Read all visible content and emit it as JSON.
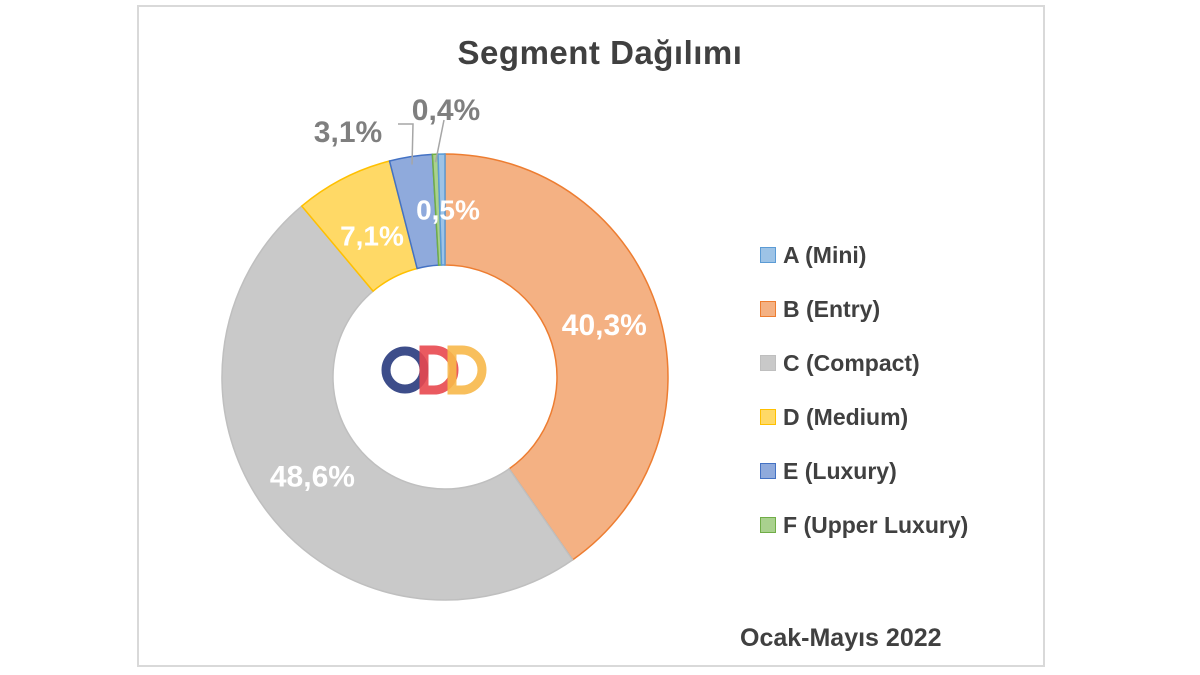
{
  "chart_data": {
    "type": "pie",
    "title": "Segment Dağılımı",
    "subtitle": "Ocak-Mayıs 2022",
    "legend_position": "right",
    "categories": [
      "A (Mini)",
      "B (Entry)",
      "C (Compact)",
      "D (Medium)",
      "E (Luxury)",
      "F (Upper Luxury)"
    ],
    "values": [
      0.5,
      40.3,
      48.6,
      7.1,
      3.1,
      0.4
    ],
    "value_labels": [
      "0,5%",
      "40,3%",
      "48,6%",
      "7,1%",
      "3,1%",
      "0,4%"
    ],
    "colors": [
      "#9dc3e6",
      "#f4b183",
      "#c9c9c9",
      "#ffd966",
      "#8faadc",
      "#a9d18e"
    ],
    "border_colors": [
      "#5b9bd5",
      "#ed7d31",
      "#bfbfbf",
      "#ffc000",
      "#4472c4",
      "#70ad47"
    ],
    "hole": "donut",
    "center_logo": "opd-logo"
  }
}
